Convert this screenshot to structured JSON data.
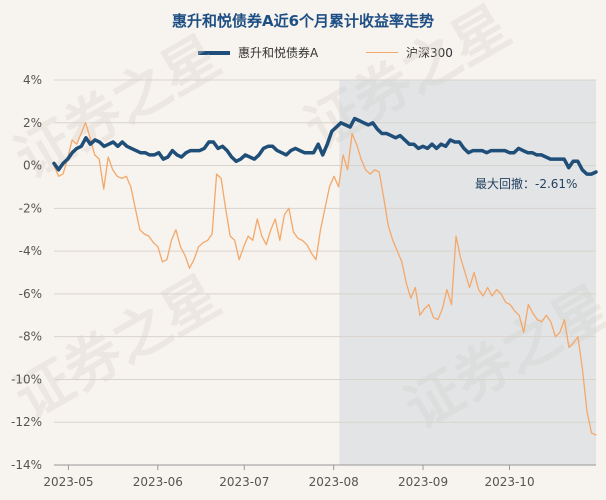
{
  "title": "惠升和悦债券A近6个月累计收益率走势",
  "watermark_text": "证券之星",
  "colors": {
    "fund": "#1f4e79",
    "index": "#f4a86a",
    "title": "#1e4f84",
    "drawdown_band": "#c9d3da"
  },
  "chart_data": {
    "type": "line",
    "title": "惠升和悦债券A近6个月累计收益率走势",
    "xlabel": "",
    "ylabel": "",
    "ylim": [
      -14,
      4
    ],
    "yticks": [
      "4%",
      "2%",
      "0%",
      "-2%",
      "-4%",
      "-6%",
      "-8%",
      "-10%",
      "-12%",
      "-14%"
    ],
    "xticks": [
      "2023-05",
      "2023-06",
      "2023-07",
      "2023-08",
      "2023-09",
      "2023-10"
    ],
    "grid": "horizontal",
    "legend_placement": "top",
    "annotation": "最大回撤：-2.61%",
    "drawdown_period": [
      "2023-08-03",
      "2023-10-31"
    ],
    "x_start": "2023-04-26",
    "x_end": "2023-10-31",
    "series": [
      {
        "name": "惠升和悦债券A",
        "values": [
          0.1,
          -0.2,
          0.1,
          0.3,
          0.6,
          0.8,
          0.9,
          1.3,
          1.0,
          1.2,
          1.1,
          0.9,
          1.0,
          1.1,
          0.9,
          1.1,
          0.9,
          0.8,
          0.7,
          0.6,
          0.6,
          0.5,
          0.5,
          0.6,
          0.3,
          0.4,
          0.7,
          0.5,
          0.4,
          0.6,
          0.7,
          0.7,
          0.7,
          0.8,
          1.1,
          1.1,
          0.8,
          0.9,
          0.7,
          0.4,
          0.2,
          0.3,
          0.5,
          0.4,
          0.3,
          0.5,
          0.8,
          0.9,
          0.9,
          0.7,
          0.6,
          0.5,
          0.7,
          0.8,
          0.7,
          0.6,
          0.6,
          0.6,
          1.0,
          0.5,
          1.0,
          1.6,
          1.8,
          2.0,
          1.9,
          1.8,
          2.2,
          2.1,
          2.0,
          1.9,
          2.0,
          1.7,
          1.5,
          1.5,
          1.4,
          1.3,
          1.4,
          1.2,
          1.0,
          1.0,
          0.8,
          0.9,
          0.8,
          1.0,
          0.8,
          1.0,
          0.9,
          1.2,
          1.1,
          1.1,
          0.8,
          0.6,
          0.7,
          0.7,
          0.7,
          0.6,
          0.7,
          0.7,
          0.7,
          0.7,
          0.6,
          0.6,
          0.8,
          0.7,
          0.6,
          0.6,
          0.5,
          0.5,
          0.4,
          0.3,
          0.3,
          0.3,
          0.3,
          -0.1,
          0.2,
          0.2,
          -0.2,
          -0.4,
          -0.4,
          -0.3
        ],
        "color": "#1f4e79"
      },
      {
        "name": "沪深300",
        "values": [
          0.0,
          -0.5,
          -0.4,
          0.3,
          1.2,
          1.0,
          1.5,
          2.0,
          1.3,
          0.5,
          0.3,
          -1.1,
          0.4,
          -0.2,
          -0.5,
          -0.6,
          -0.5,
          -1.0,
          -2.0,
          -3.0,
          -3.2,
          -3.3,
          -3.6,
          -3.8,
          -4.5,
          -4.4,
          -3.5,
          -3.0,
          -3.8,
          -4.2,
          -4.8,
          -4.4,
          -3.8,
          -3.6,
          -3.5,
          -3.2,
          -0.4,
          -0.6,
          -2.0,
          -3.3,
          -3.5,
          -4.4,
          -3.8,
          -3.3,
          -3.5,
          -2.5,
          -3.3,
          -3.7,
          -3.0,
          -2.5,
          -3.5,
          -2.3,
          -2.0,
          -3.1,
          -3.4,
          -3.5,
          -3.7,
          -4.1,
          -4.4,
          -3.0,
          -2.0,
          -1.0,
          -0.5,
          -1.0,
          0.5,
          -0.2,
          1.5,
          1.0,
          0.3,
          -0.2,
          -0.4,
          -0.2,
          -0.3,
          -1.5,
          -2.8,
          -3.5,
          -4.0,
          -4.5,
          -5.5,
          -6.2,
          -5.7,
          -7.0,
          -6.7,
          -6.5,
          -7.1,
          -7.2,
          -6.7,
          -5.8,
          -6.5,
          -3.3,
          -4.3,
          -5.0,
          -5.7,
          -5.0,
          -5.8,
          -6.1,
          -5.7,
          -6.1,
          -5.8,
          -6.0,
          -6.4,
          -6.5,
          -6.8,
          -7.0,
          -7.8,
          -6.5,
          -6.9,
          -7.2,
          -7.3,
          -7.0,
          -7.3,
          -8.0,
          -7.8,
          -7.2,
          -8.5,
          -8.3,
          -8.0,
          -9.5,
          -11.5,
          -12.5,
          -12.6
        ],
        "color": "#f4a86a"
      }
    ]
  }
}
